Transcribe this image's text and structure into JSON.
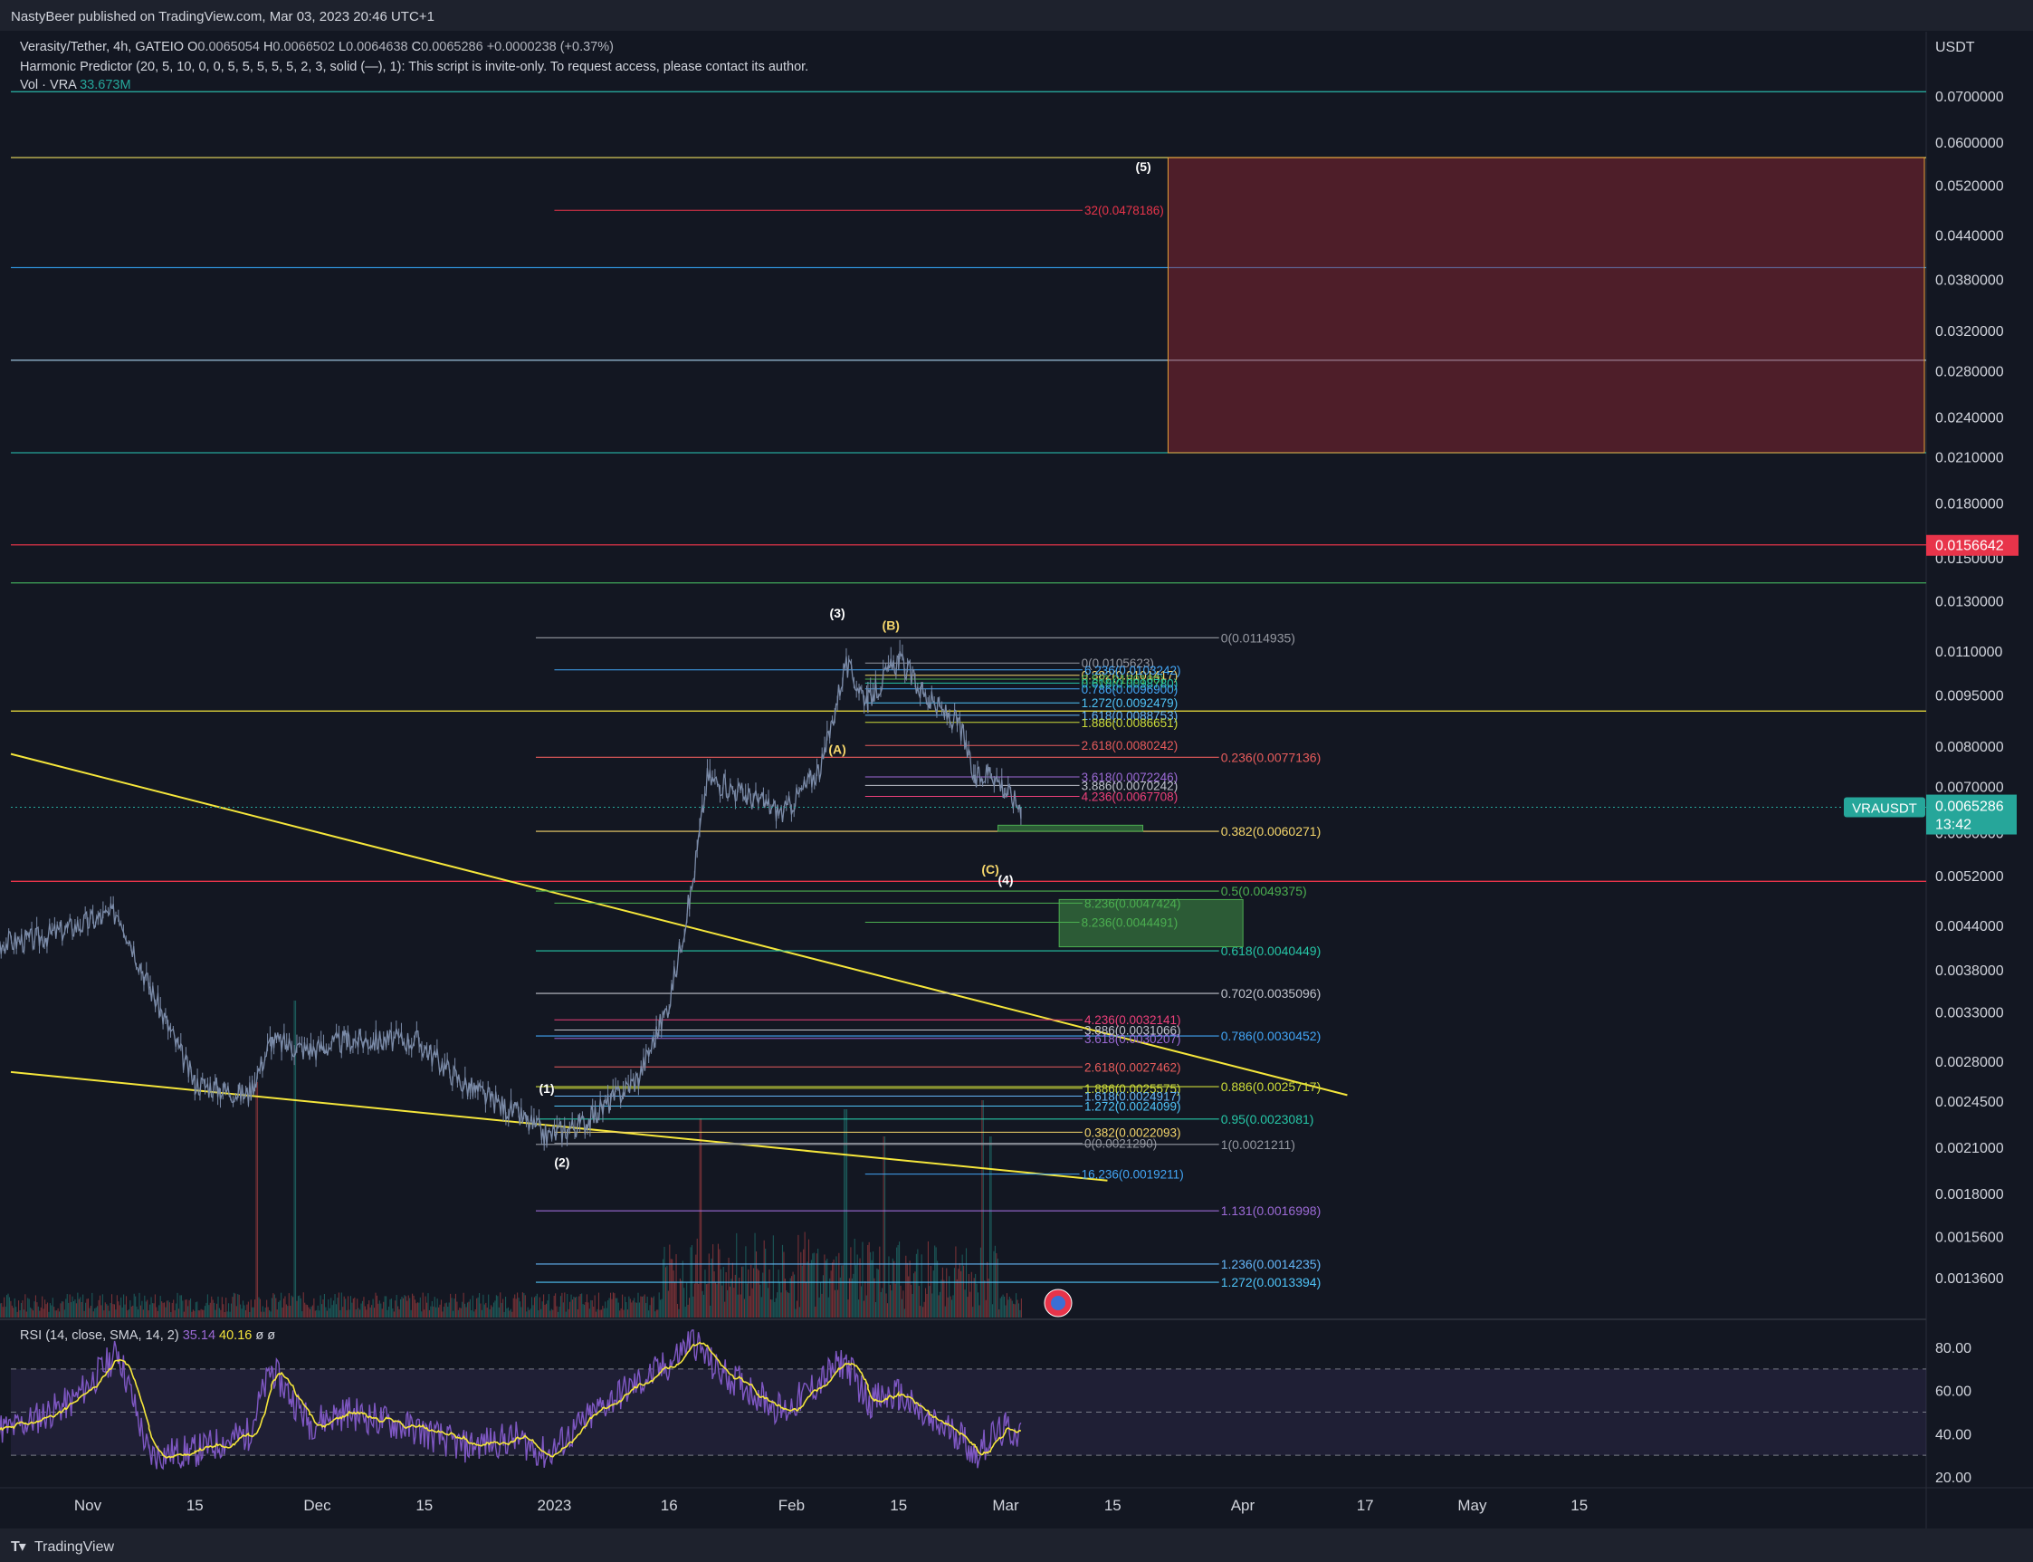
{
  "header": {
    "publish_line": "NastyBeer published on TradingView.com, Mar 03, 2023 20:46 UTC+1"
  },
  "legend": {
    "symbol_line": "Verasity/Tether, 4h, GATEIO",
    "ohlc": [
      {
        "k": "O",
        "v": "0.0065054"
      },
      {
        "k": "H",
        "v": "0.0066502"
      },
      {
        "k": "L",
        "v": "0.0064638"
      },
      {
        "k": "C",
        "v": "0.0065286"
      }
    ],
    "change": "+0.0000238 (+0.37%)",
    "indicator_line": "Harmonic Predictor (20, 5, 10, 0, 0, 5, 5, 5, 5, 5, 2, 3, solid (—), 1): This script is invite-only. To request access, please contact its author.",
    "volume_label": "Vol · VRA",
    "volume_value": "33.673M",
    "rsi_label": "RSI (14, close, SMA, 14, 2)",
    "rsi_value": "35.14",
    "rsi_ma_value": "40.16",
    "rsi_extra": "ø  ø"
  },
  "footer": {
    "brand": "TradingView"
  },
  "chart_data": {
    "type": "candlestick",
    "symbol": "VRAUSDT",
    "timeframe": "4h",
    "y_axis": {
      "unit": "USDT",
      "scale": "log",
      "ticks": [
        "0.0700000",
        "0.0600000",
        "0.0520000",
        "0.0440000",
        "0.0380000",
        "0.0320000",
        "0.0280000",
        "0.0240000",
        "0.0210000",
        "0.0180000",
        "0.0150000",
        "0.0130000",
        "0.0110000",
        "0.0095000",
        "0.0080000",
        "0.0070000",
        "0.0060000",
        "0.0052000",
        "0.0044000",
        "0.0038000",
        "0.0033000",
        "0.0028000",
        "0.0024500",
        "0.0021000",
        "0.0018000",
        "0.0015600",
        "0.0013600"
      ]
    },
    "x_axis": {
      "ticks": [
        "Nov",
        "15",
        "Dec",
        "15",
        "2023",
        "16",
        "Feb",
        "15",
        "Mar",
        "15",
        "Apr",
        "17",
        "May",
        "15"
      ]
    },
    "last_price": "0.0065286",
    "countdown": "13:42",
    "marked_price": "0.0156642",
    "colors": {
      "up": "#26a69a",
      "down": "#ef5350",
      "price": "#7b8ba8",
      "wedge": "#f5e63b",
      "rsi": "#7e57c2",
      "rsi_ma": "#f5e63b"
    },
    "horizontal_levels": [
      {
        "price": 0.071,
        "color": "#26a69a"
      },
      {
        "price": 0.057,
        "color": "#d6c85a"
      },
      {
        "price": 0.0395,
        "color": "#2f8fd6"
      },
      {
        "price": 0.029,
        "color": "#8fb3cc"
      },
      {
        "price": 0.0213,
        "color": "#26a69a"
      },
      {
        "price": 0.0156642,
        "color": "#e8344a"
      },
      {
        "price": 0.0138,
        "color": "#3c9a55"
      },
      {
        "price": 0.009,
        "color": "#f5e63b"
      },
      {
        "price": 0.0051,
        "color": "#e8344a"
      }
    ],
    "target_zone": {
      "from": "Mar 22",
      "to": "end",
      "top": 0.057,
      "bottom": 0.0213
    },
    "wedge_lines": [
      {
        "from": [
          "Oct 15",
          0.0078
        ],
        "to": [
          "Mar 22",
          0.0025
        ]
      },
      {
        "from": [
          "Oct 15",
          0.0027
        ],
        "to": [
          "Mar 22",
          0.00188
        ]
      }
    ],
    "fib_retracement": [
      {
        "label": "0(0.0114935)",
        "price": 0.0114935,
        "color": "#9598a1"
      },
      {
        "label": "0.236(0.0077136)",
        "price": 0.0077136,
        "color": "#e85c5c"
      },
      {
        "label": "0.382(0.0060271)",
        "price": 0.0060271,
        "color": "#f5d66b"
      },
      {
        "label": "0.5(0.0049375)",
        "price": 0.0049375,
        "color": "#4caf50"
      },
      {
        "label": "0.618(0.0040449)",
        "price": 0.0040449,
        "color": "#26c6a6"
      },
      {
        "label": "0.702(0.0035096)",
        "price": 0.0035096,
        "color": "#c0c3cc"
      },
      {
        "label": "0.786(0.0030452)",
        "price": 0.0030452,
        "color": "#42a5f5"
      },
      {
        "label": "0.886(0.0025717)",
        "price": 0.0025717,
        "color": "#cddc39"
      },
      {
        "label": "0.95(0.0023081)",
        "price": 0.0023081,
        "color": "#26c6a6"
      },
      {
        "label": "1(0.0021211)",
        "price": 0.0021211,
        "color": "#9598a1"
      },
      {
        "label": "1.131(0.0016998)",
        "price": 0.0016998,
        "color": "#9c6ad6"
      },
      {
        "label": "1.236(0.0014235)",
        "price": 0.0014235,
        "color": "#64b5f6"
      },
      {
        "label": "1.272(0.0013394)",
        "price": 0.0013394,
        "color": "#4fc3f7"
      }
    ],
    "fib_extension_top": [
      {
        "label": "0(0.0105623)",
        "price": 0.0105623,
        "color": "#9598a1"
      },
      {
        "label": "0.382(0.0101417)",
        "price": 0.0101417,
        "color": "#f5d66b"
      },
      {
        "label": "0.5(0.0100100)",
        "price": 0.01001,
        "color": "#4caf50"
      },
      {
        "label": "0.618(0.0098780)",
        "price": 0.009878,
        "color": "#26c6a6"
      },
      {
        "label": "0.786(0.0096900)",
        "price": 0.00969,
        "color": "#42a5f5"
      },
      {
        "label": "1.272(0.0092479)",
        "price": 0.0092479,
        "color": "#4fc3f7"
      },
      {
        "label": "1.618(0.0088753)",
        "price": 0.0088753,
        "color": "#64b5f6"
      },
      {
        "label": "1.886(0.0086651)",
        "price": 0.0086651,
        "color": "#cddc39"
      },
      {
        "label": "2.618(0.0080242)",
        "price": 0.0080242,
        "color": "#e85c5c"
      },
      {
        "label": "3.618(0.0072246)",
        "price": 0.0072246,
        "color": "#9c6ad6"
      },
      {
        "label": "3.886(0.0070242)",
        "price": 0.0070242,
        "color": "#c0c3cc"
      },
      {
        "label": "4.236(0.0067708)",
        "price": 0.0067708,
        "color": "#ec407a"
      },
      {
        "label": "8.236(0.0044491)",
        "price": 0.0044491,
        "color": "#4caf50"
      },
      {
        "label": "16.236(0.0019211)",
        "price": 0.0019211,
        "color": "#42a5f5"
      }
    ],
    "fib_extension_bottom": [
      {
        "label": "6.236(0.0103242)",
        "price": 0.0103242,
        "color": "#42a5f5"
      },
      {
        "label": "32(0.0478186)",
        "price": 0.0478186,
        "color": "#e8344a"
      },
      {
        "label": "8.236(0.0047424)",
        "price": 0.0047424,
        "color": "#4caf50"
      },
      {
        "label": "4.236(0.0032141)",
        "price": 0.0032141,
        "color": "#ec407a"
      },
      {
        "label": "3.886(0.0031066)",
        "price": 0.0031066,
        "color": "#c0c3cc"
      },
      {
        "label": "3.618(0.0030207)",
        "price": 0.0030207,
        "color": "#9c6ad6"
      },
      {
        "label": "2.618(0.0027462)",
        "price": 0.0027462,
        "color": "#e85c5c"
      },
      {
        "label": "1.886(0.0025575)",
        "price": 0.0025575,
        "color": "#cddc39"
      },
      {
        "label": "1.618(0.0024917)",
        "price": 0.0024917,
        "color": "#64b5f6"
      },
      {
        "label": "1.272(0.0024099)",
        "price": 0.0024099,
        "color": "#4fc3f7"
      },
      {
        "label": "0.382(0.0022093)",
        "price": 0.0022093,
        "color": "#f5d66b"
      },
      {
        "label": "0(0.0021290)",
        "price": 0.002129,
        "color": "#9598a1"
      }
    ],
    "wave_labels": [
      {
        "label": "(1)",
        "date": "Dec 31",
        "price": 0.00252,
        "color": "#ffffff"
      },
      {
        "label": "(2)",
        "date": "Jan 2",
        "price": 0.00197,
        "color": "#ffffff"
      },
      {
        "label": "(3)",
        "date": "Feb 7",
        "price": 0.0123,
        "color": "#ffffff"
      },
      {
        "label": "(4)",
        "date": "Mar 1",
        "price": 0.00505,
        "color": "#ffffff"
      },
      {
        "label": "(5)",
        "date": "Mar 19",
        "price": 0.0545,
        "color": "#ffffff"
      },
      {
        "label": "(A)",
        "date": "Feb 7",
        "price": 0.0078,
        "color": "#f5d66b"
      },
      {
        "label": "(B)",
        "date": "Feb 14",
        "price": 0.0118,
        "color": "#f5d66b"
      },
      {
        "label": "(C)",
        "date": "Feb 27",
        "price": 0.00523,
        "color": "#f5d66b"
      }
    ],
    "price_anchors": [
      [
        "Oct 15",
        0.0041
      ],
      [
        "Oct 25",
        0.0042
      ],
      [
        "Nov 5",
        0.0046
      ],
      [
        "Nov 9",
        0.0036
      ],
      [
        "Nov 15",
        0.0026
      ],
      [
        "Nov 22",
        0.0025
      ],
      [
        "Nov 25",
        0.003
      ],
      [
        "Nov 30",
        0.0029
      ],
      [
        "Dec 5",
        0.003
      ],
      [
        "Dec 14",
        0.003
      ],
      [
        "Dec 20",
        0.0026
      ],
      [
        "Dec 27",
        0.00235
      ],
      [
        "Dec 31",
        0.00218
      ],
      [
        "Jan 5",
        0.00228
      ],
      [
        "Jan 12",
        0.00265
      ],
      [
        "Jan 16",
        0.0034
      ],
      [
        "Jan 19",
        0.005
      ],
      [
        "Jan 21",
        0.0072
      ],
      [
        "Jan 26",
        0.0068
      ],
      [
        "Jan 31",
        0.0064
      ],
      [
        "Feb 5",
        0.0075
      ],
      [
        "Feb 8",
        0.0105
      ],
      [
        "Feb 11",
        0.0093
      ],
      [
        "Feb 15",
        0.0107
      ],
      [
        "Feb 19",
        0.0093
      ],
      [
        "Feb 23",
        0.0086
      ],
      [
        "Feb 25",
        0.0071
      ],
      [
        "Feb 27",
        0.0074
      ],
      [
        "Mar 1",
        0.0069
      ],
      [
        "Mar 3",
        0.0065286
      ]
    ],
    "rsi": {
      "ticks": [
        "80.00",
        "60.00",
        "40.00",
        "20.00"
      ],
      "upper_band": 70,
      "middle_band": 50,
      "lower_band": 30,
      "anchors": [
        [
          "Oct 15",
          45
        ],
        [
          "Oct 22",
          42
        ],
        [
          "Oct 30",
          55
        ],
        [
          "Nov 5",
          78
        ],
        [
          "Nov 9",
          30
        ],
        [
          "Nov 15",
          32
        ],
        [
          "Nov 22",
          40
        ],
        [
          "Nov 25",
          70
        ],
        [
          "Nov 30",
          45
        ],
        [
          "Dec 5",
          50
        ],
        [
          "Dec 14",
          42
        ],
        [
          "Dec 20",
          34
        ],
        [
          "Dec 27",
          38
        ],
        [
          "Dec 31",
          30
        ],
        [
          "Jan 8",
          55
        ],
        [
          "Jan 16",
          72
        ],
        [
          "Jan 19",
          84
        ],
        [
          "Jan 22",
          70
        ],
        [
          "Jan 26",
          62
        ],
        [
          "Jan 31",
          50
        ],
        [
          "Feb 5",
          65
        ],
        [
          "Feb 8",
          74
        ],
        [
          "Feb 11",
          55
        ],
        [
          "Feb 15",
          58
        ],
        [
          "Feb 19",
          45
        ],
        [
          "Feb 23",
          40
        ],
        [
          "Feb 25",
          30
        ],
        [
          "Feb 27",
          38
        ],
        [
          "Mar 1",
          42
        ],
        [
          "Mar 3",
          40
        ]
      ]
    }
  }
}
